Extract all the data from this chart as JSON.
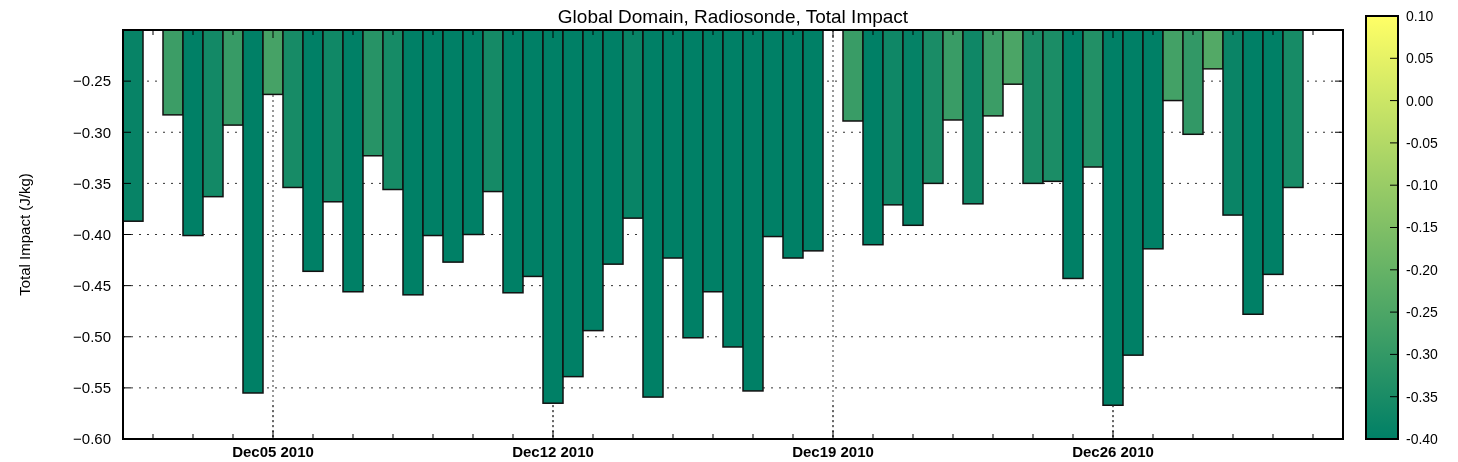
{
  "chart_data": {
    "type": "bar",
    "title": "Global Domain, Radiosonde, Total Impact",
    "ylabel": "Total Impact (J/kg)",
    "x": [
      "2010-12-01T12:00",
      "2010-12-02T00:00",
      "2010-12-02T12:00",
      "2010-12-03T00:00",
      "2010-12-03T12:00",
      "2010-12-04T00:00",
      "2010-12-04T12:00",
      "2010-12-05T00:00",
      "2010-12-05T12:00",
      "2010-12-06T00:00",
      "2010-12-06T12:00",
      "2010-12-07T00:00",
      "2010-12-07T12:00",
      "2010-12-08T00:00",
      "2010-12-08T12:00",
      "2010-12-09T00:00",
      "2010-12-09T12:00",
      "2010-12-10T00:00",
      "2010-12-10T12:00",
      "2010-12-11T00:00",
      "2010-12-11T12:00",
      "2010-12-12T00:00",
      "2010-12-12T12:00",
      "2010-12-13T00:00",
      "2010-12-13T12:00",
      "2010-12-14T00:00",
      "2010-12-14T12:00",
      "2010-12-15T00:00",
      "2010-12-15T12:00",
      "2010-12-16T00:00",
      "2010-12-16T12:00",
      "2010-12-17T00:00",
      "2010-12-17T12:00",
      "2010-12-18T00:00",
      "2010-12-18T12:00",
      "2010-12-19T00:00",
      "2010-12-19T12:00",
      "2010-12-20T00:00",
      "2010-12-20T12:00",
      "2010-12-21T00:00",
      "2010-12-21T12:00",
      "2010-12-22T00:00",
      "2010-12-22T12:00",
      "2010-12-23T00:00",
      "2010-12-23T12:00",
      "2010-12-24T00:00",
      "2010-12-24T12:00",
      "2010-12-25T00:00",
      "2010-12-25T12:00",
      "2010-12-26T00:00",
      "2010-12-26T12:00",
      "2010-12-27T00:00",
      "2010-12-27T12:00",
      "2010-12-28T00:00",
      "2010-12-28T12:00",
      "2010-12-29T00:00",
      "2010-12-29T12:00",
      "2010-12-30T00:00",
      "2010-12-30T12:00"
    ],
    "values": [
      -0.387,
      null,
      -0.283,
      -0.401,
      -0.363,
      -0.293,
      -0.555,
      -0.263,
      -0.354,
      -0.436,
      -0.368,
      -0.456,
      -0.323,
      -0.356,
      -0.459,
      -0.401,
      -0.427,
      -0.4,
      -0.358,
      -0.457,
      -0.441,
      -0.565,
      -0.539,
      -0.494,
      -0.429,
      -0.384,
      -0.559,
      -0.423,
      -0.501,
      -0.456,
      -0.51,
      -0.553,
      -0.402,
      -0.423,
      -0.416,
      null,
      -0.289,
      -0.41,
      -0.371,
      -0.391,
      -0.35,
      -0.288,
      -0.37,
      -0.284,
      -0.253,
      -0.35,
      -0.348,
      -0.443,
      -0.334,
      -0.567,
      -0.518,
      -0.414,
      -0.269,
      -0.302,
      -0.238,
      -0.381,
      -0.478,
      -0.439,
      -0.354
    ],
    "xlim": [
      "2010-12-01T06:00",
      "2010-12-31T18:00"
    ],
    "xticks": [
      {
        "value": "2010-12-02",
        "label": null
      },
      {
        "value": "2010-12-03",
        "label": null
      },
      {
        "value": "2010-12-04",
        "label": null
      },
      {
        "value": "2010-12-05",
        "label": "Dec05 2010"
      },
      {
        "value": "2010-12-06",
        "label": null
      },
      {
        "value": "2010-12-07",
        "label": null
      },
      {
        "value": "2010-12-08",
        "label": null
      },
      {
        "value": "2010-12-09",
        "label": null
      },
      {
        "value": "2010-12-10",
        "label": null
      },
      {
        "value": "2010-12-11",
        "label": null
      },
      {
        "value": "2010-12-12",
        "label": "Dec12 2010"
      },
      {
        "value": "2010-12-13",
        "label": null
      },
      {
        "value": "2010-12-14",
        "label": null
      },
      {
        "value": "2010-12-15",
        "label": null
      },
      {
        "value": "2010-12-16",
        "label": null
      },
      {
        "value": "2010-12-17",
        "label": null
      },
      {
        "value": "2010-12-18",
        "label": null
      },
      {
        "value": "2010-12-19",
        "label": "Dec19 2010"
      },
      {
        "value": "2010-12-20",
        "label": null
      },
      {
        "value": "2010-12-21",
        "label": null
      },
      {
        "value": "2010-12-22",
        "label": null
      },
      {
        "value": "2010-12-23",
        "label": null
      },
      {
        "value": "2010-12-24",
        "label": null
      },
      {
        "value": "2010-12-25",
        "label": null
      },
      {
        "value": "2010-12-26",
        "label": "Dec26 2010"
      },
      {
        "value": "2010-12-27",
        "label": null
      },
      {
        "value": "2010-12-28",
        "label": null
      },
      {
        "value": "2010-12-29",
        "label": null
      },
      {
        "value": "2010-12-30",
        "label": null
      },
      {
        "value": "2010-12-31",
        "label": null
      }
    ],
    "ylim": [
      -0.6,
      -0.2
    ],
    "yticks": [
      {
        "value": -0.6,
        "label": "−0.60"
      },
      {
        "value": -0.55,
        "label": "−0.55"
      },
      {
        "value": -0.5,
        "label": "−0.50"
      },
      {
        "value": -0.45,
        "label": "−0.45"
      },
      {
        "value": -0.4,
        "label": "−0.40"
      },
      {
        "value": -0.35,
        "label": "−0.35"
      },
      {
        "value": -0.3,
        "label": "−0.30"
      },
      {
        "value": -0.25,
        "label": "−0.25"
      }
    ],
    "clim": [
      -0.4,
      0.1
    ],
    "cticks": [
      {
        "value": -0.4,
        "label": "-0.40"
      },
      {
        "value": -0.35,
        "label": "-0.35"
      },
      {
        "value": -0.3,
        "label": "-0.30"
      },
      {
        "value": -0.25,
        "label": "-0.25"
      },
      {
        "value": -0.2,
        "label": "-0.20"
      },
      {
        "value": -0.15,
        "label": "-0.15"
      },
      {
        "value": -0.1,
        "label": "-0.10"
      },
      {
        "value": -0.05,
        "label": "-0.05"
      },
      {
        "value": 0,
        "label": "0.00"
      },
      {
        "value": 0.05,
        "label": "0.05"
      },
      {
        "value": 0.1,
        "label": "0.10"
      }
    ],
    "grid": true
  }
}
